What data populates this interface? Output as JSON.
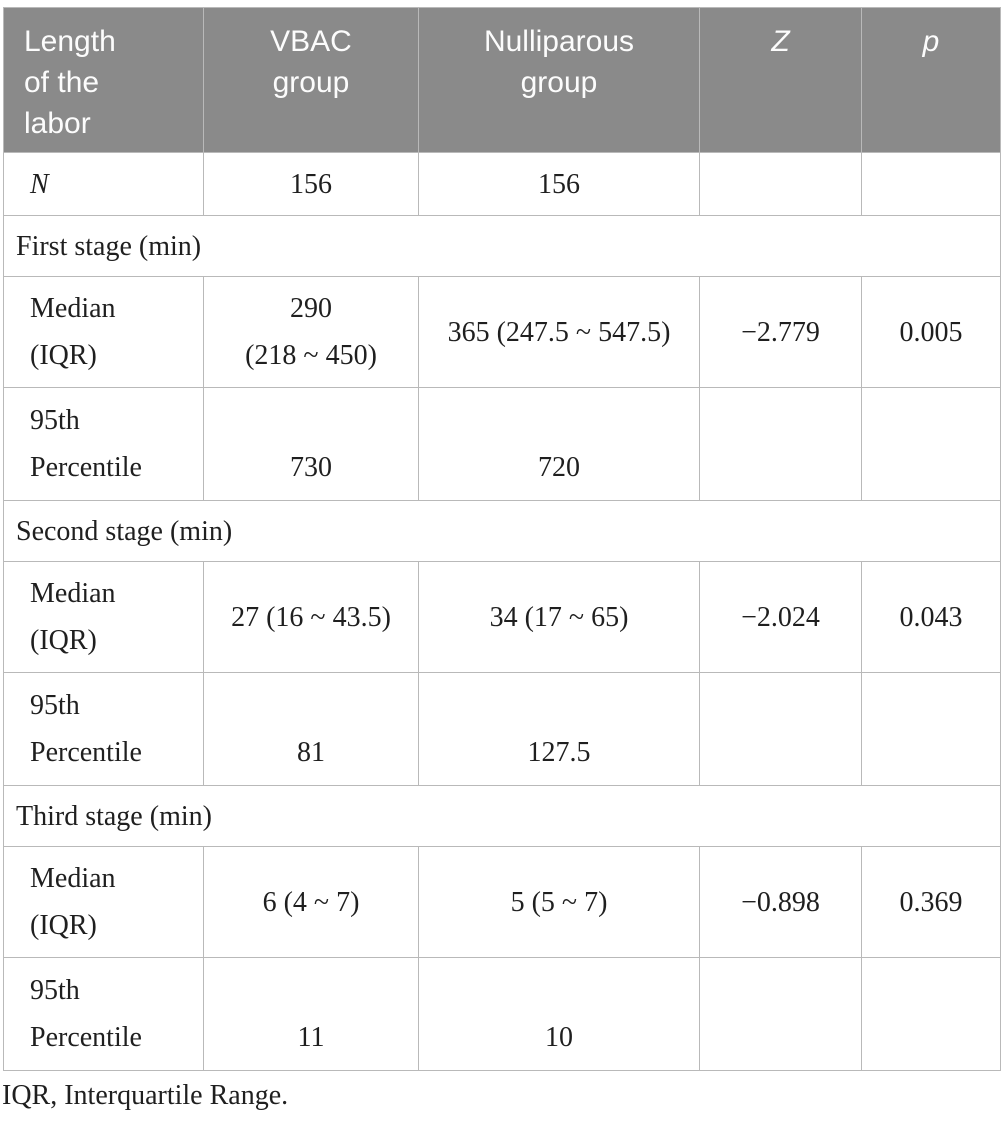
{
  "colors": {
    "header_bg": "#8a8a8a",
    "header_text": "#fcfcfc",
    "body_text": "#1f1f1f",
    "border": "#b9b9b9"
  },
  "table": {
    "header": {
      "labor": "Length\nof the\nlabor",
      "vbac": "VBAC\ngroup",
      "nulliparous": "Nulliparous\ngroup",
      "z": "Z",
      "p": "p"
    },
    "n_row": {
      "label": "N",
      "vbac": "156",
      "nulliparous": "156"
    },
    "sections": [
      {
        "title": "First stage (min)",
        "median": {
          "label": "Median\n(IQR)",
          "vbac": "290\n(218 ~ 450)",
          "nulliparous": "365 (247.5 ~ 547.5)",
          "z": "−2.779",
          "p": "0.005"
        },
        "p95": {
          "label": "95th\nPercentile",
          "vbac": "730",
          "nulliparous": "720"
        }
      },
      {
        "title": "Second stage (min)",
        "median": {
          "label": "Median\n(IQR)",
          "vbac": "27 (16 ~ 43.5)",
          "nulliparous": "34 (17 ~ 65)",
          "z": "−2.024",
          "p": "0.043"
        },
        "p95": {
          "label": "95th\nPercentile",
          "vbac": "81",
          "nulliparous": "127.5"
        }
      },
      {
        "title": "Third stage (min)",
        "median": {
          "label": "Median\n(IQR)",
          "vbac": "6 (4 ~ 7)",
          "nulliparous": "5 (5 ~ 7)",
          "z": "−0.898",
          "p": "0.369"
        },
        "p95": {
          "label": "95th\nPercentile",
          "vbac": "11",
          "nulliparous": "10"
        }
      }
    ],
    "footnote": "IQR, Interquartile Range."
  }
}
